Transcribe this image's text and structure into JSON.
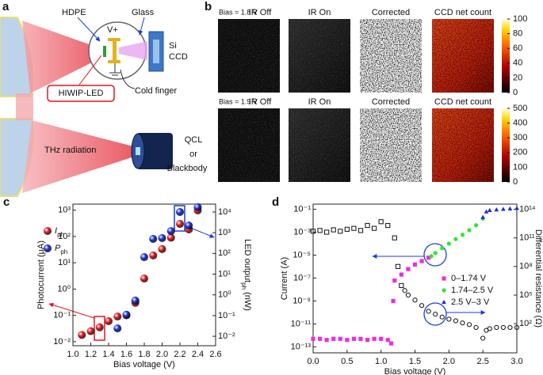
{
  "panel_a": {
    "label": "a",
    "hdpe": "HDPE",
    "glass": "Glass",
    "vplus": "V+",
    "si": "Si",
    "ccd": "CCD",
    "cold_finger": "Cold finger",
    "led": "HIWIP-LED",
    "thz": "THz radiation",
    "qcl": "QCL",
    "or": "or",
    "blackbody": "Blackbody"
  },
  "panel_b": {
    "label": "b",
    "columns": [
      "IR Off",
      "IR On",
      "Corrected",
      "CCD net count"
    ],
    "rows": [
      {
        "bias": "Bias = 1.8 V",
        "colorbar": {
          "lim": [
            0,
            100
          ],
          "ticks": [
            0,
            20,
            40,
            60,
            80,
            100
          ]
        }
      },
      {
        "bias": "Bias = 1.9 V",
        "colorbar": {
          "lim": [
            0,
            500
          ],
          "ticks": [
            0,
            100,
            200,
            300,
            400,
            500
          ]
        }
      }
    ]
  },
  "chart_data": [
    {
      "type": "scatter",
      "label": "c",
      "xlabel": "Bias voltage (V)",
      "ylabel": "Photocurrent (μA)",
      "y2label": "LED output",
      "y2label_sub": "ph",
      "y2label_end": " (nW)",
      "yscale": "log",
      "xlim": [
        1.0,
        2.6
      ],
      "xticks": [
        {
          "value": 1.0,
          "label": "1.0"
        },
        1.2,
        1.4,
        1.6,
        1.8,
        {
          "value": 2.0,
          "label": "2.0"
        },
        2.2,
        2.4,
        2.6
      ],
      "ylim": [
        0.007,
        1700
      ],
      "yticks": [
        {
          "value": 0.01,
          "label": "10⁻²"
        },
        {
          "value": 0.1,
          "label": "10⁻¹"
        },
        {
          "value": 1,
          "label": "10⁰"
        },
        {
          "value": 10,
          "label": "10¹"
        },
        {
          "value": 100,
          "label": "10²"
        },
        {
          "value": 1000,
          "label": "10³"
        }
      ],
      "y2lim": [
        0.0035,
        24000
      ],
      "y2ticks": [
        {
          "value": 0.01,
          "label": "10⁻²"
        },
        {
          "value": 0.1,
          "label": "10⁻¹"
        },
        {
          "value": 1,
          "label": "10⁰"
        },
        {
          "value": 10,
          "label": "10¹"
        },
        {
          "value": 100,
          "label": "10²"
        },
        {
          "value": 1000,
          "label": "10³"
        },
        {
          "value": 10000,
          "label": "10⁴"
        }
      ],
      "series": [
        {
          "name": "I",
          "name_sub": "ph",
          "color": "#e3151b",
          "marker": "sphere",
          "x": [
            1.1,
            1.2,
            1.3,
            1.4,
            1.5,
            1.6,
            1.7,
            1.8,
            1.9,
            2.0,
            2.1,
            2.2,
            2.3,
            2.4
          ],
          "values": [
            0.018,
            0.025,
            0.035,
            0.06,
            0.09,
            0.1,
            0.3,
            2.5,
            19,
            33,
            90,
            300,
            185,
            980
          ]
        },
        {
          "name": "P",
          "name_sub": "ph",
          "color": "#1a2fd6",
          "marker": "sphere",
          "axis": "y2",
          "x": [
            1.5,
            1.6,
            1.7,
            1.8,
            1.9,
            2.0,
            2.1,
            2.2,
            2.3,
            2.4
          ],
          "values": [
            0.024,
            0.11,
            0.53,
            66,
            500,
            550,
            1200,
            10000,
            2200,
            17000
          ]
        }
      ]
    },
    {
      "type": "scatter",
      "label": "d",
      "xlabel": "Bias voltage (V)",
      "ylabel": "Current (A)",
      "y2label": "Differential resistance (Ω)",
      "yscale": "log",
      "xlim": [
        0,
        3
      ],
      "xticks": [
        {
          "value": 0,
          "label": "0.0"
        },
        0.5,
        {
          "value": 1,
          "label": "1.0"
        },
        1.5,
        {
          "value": 2,
          "label": "2.0"
        },
        2.5,
        {
          "value": 3,
          "label": "3.0"
        }
      ],
      "ylim": [
        3e-14,
        0.28
      ],
      "yticks": [
        {
          "value": 1e-13,
          "label": "10⁻¹³"
        },
        {
          "value": 1e-11,
          "label": "10⁻¹¹"
        },
        {
          "value": 1e-09,
          "label": "10⁻⁹"
        },
        {
          "value": 1e-07,
          "label": "10⁻⁷"
        },
        {
          "value": 1e-05,
          "label": "10⁻⁵"
        },
        {
          "value": 0.001,
          "label": "10⁻³"
        },
        {
          "value": 0.1,
          "label": "10⁻¹"
        }
      ],
      "y2lim": [
        0.087,
        350000000000000.0
      ],
      "y2ticks": [
        {
          "value": 100,
          "label": "10²"
        },
        {
          "value": 100000,
          "label": "10⁵"
        },
        {
          "value": 100000000,
          "label": "10⁸"
        },
        {
          "value": 100000000000,
          "label": "10¹¹"
        },
        {
          "value": 100000000000000,
          "label": "10¹⁴"
        }
      ],
      "series": [
        {
          "name": "0–1.74 V",
          "color": "#ee2ce0",
          "marker": "square",
          "filled": true,
          "x": [
            0,
            0.1,
            0.2,
            0.3,
            0.4,
            0.5,
            0.6,
            0.7,
            0.8,
            0.9,
            1.0,
            1.1,
            1.15,
            1.18,
            1.2,
            1.3,
            1.4,
            1.5,
            1.6,
            1.7
          ],
          "values": [
            5e-13,
            5e-13,
            4e-13,
            5e-13,
            5e-13,
            4e-13,
            5e-13,
            5e-13,
            4e-13,
            5e-13,
            5e-13,
            4e-13,
            2e-13,
            1e-09,
            6e-08,
            2e-07,
            6e-07,
            1.5e-06,
            3e-06,
            6e-06
          ]
        },
        {
          "name": "1.74–2.5 V",
          "color": "#2ee62e",
          "marker": "circle",
          "filled": true,
          "x": [
            1.74,
            1.8,
            1.9,
            2.0,
            2.1,
            2.2,
            2.3,
            2.4,
            2.5
          ],
          "values": [
            8e-06,
            1.5e-05,
            4e-05,
            0.0001,
            0.00025,
            0.0006,
            0.0015,
            0.004,
            0.015
          ]
        },
        {
          "name": "2.5 V–3 V",
          "color": "#1a2fd6",
          "marker": "triangle",
          "filled": true,
          "x": [
            2.5,
            2.55,
            2.6,
            2.7,
            2.8,
            2.9,
            3.0
          ],
          "values": [
            0.02,
            0.06,
            0.08,
            0.09,
            0.1,
            0.11,
            0.12
          ]
        },
        {
          "color": "#111111",
          "marker": "square",
          "filled": false,
          "axis": "y2",
          "x": [
            0,
            0.1,
            0.2,
            0.3,
            0.4,
            0.5,
            0.6,
            0.7,
            0.8,
            0.9,
            1.0,
            1.1,
            1.2,
            1.25,
            1.3
          ],
          "values": [
            500000000000,
            600000000000,
            400000000000,
            700000000000,
            500000000000,
            800000000000,
            1000000000000,
            600000000000,
            2000000000000,
            1000000000000,
            5000000000000,
            2000000000000,
            100000000000,
            100000000,
            1000000
          ]
        },
        {
          "color": "#111111",
          "marker": "circle",
          "filled": false,
          "axis": "y2",
          "x": [
            1.35,
            1.4,
            1.5,
            1.6,
            1.7,
            1.8,
            1.9,
            2.0,
            2.1,
            2.2,
            2.3,
            2.4,
            2.5,
            2.55,
            2.6,
            2.7,
            2.8,
            2.9,
            3.0
          ],
          "values": [
            300000,
            100000,
            30000,
            8000,
            2000,
            1000,
            500,
            300,
            200,
            120,
            80,
            40,
            3,
            20,
            30,
            40,
            40,
            40,
            40
          ]
        }
      ]
    }
  ]
}
